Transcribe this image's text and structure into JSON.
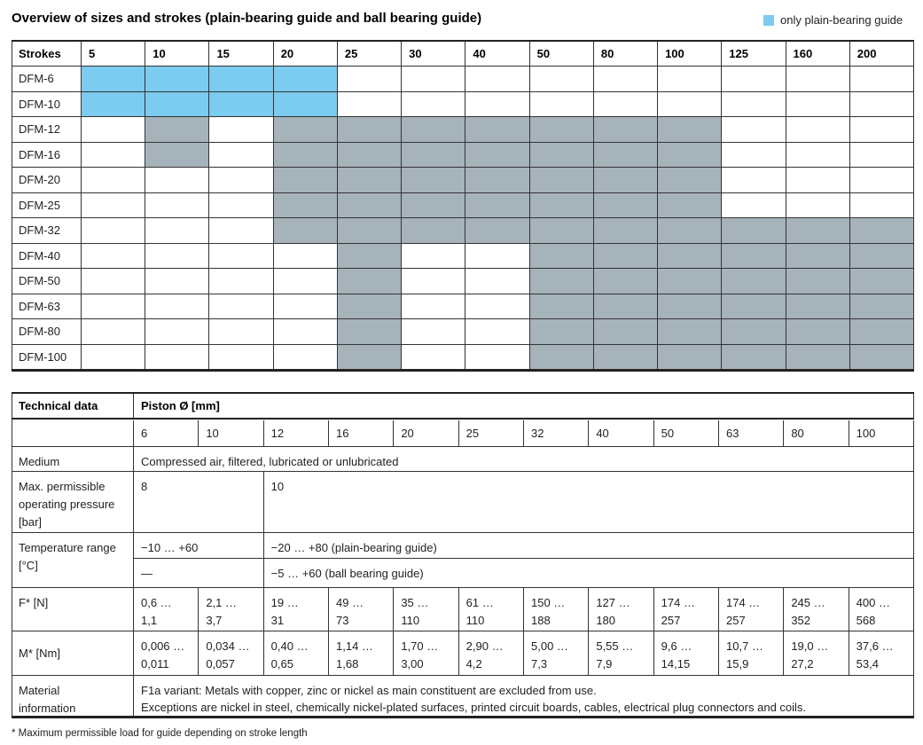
{
  "header": {
    "title": "Overview of sizes and strokes (plain-bearing guide and ball bearing guide)",
    "legend": "only plain-bearing guide"
  },
  "strokes_table": {
    "header_label": "Strokes",
    "strokes": [
      5,
      10,
      15,
      20,
      25,
      30,
      40,
      50,
      80,
      100,
      125,
      160,
      200
    ],
    "rows": [
      "DFM-6",
      "DFM-10",
      "DFM-12",
      "DFM-16",
      "DFM-20",
      "DFM-25",
      "DFM-32",
      "DFM-40",
      "DFM-50",
      "DFM-63",
      "DFM-80",
      "DFM-100"
    ]
  },
  "tech_table": {
    "header_label": "Technical data",
    "piston_label": "Piston Ø [mm]",
    "diameters": [
      6,
      10,
      12,
      16,
      20,
      25,
      32,
      40,
      50,
      63,
      80,
      100
    ],
    "medium": {
      "label": [
        "Medium"
      ],
      "value": "Compressed air, filtered, lubricated or unlubricated"
    },
    "pressure": {
      "label": [
        "Max. permissible",
        "operating pressure",
        "[bar]"
      ],
      "values": [
        "8",
        "10"
      ]
    },
    "temperature": {
      "label": [
        "Temperature range",
        "[°C]"
      ],
      "small": [
        "−10 … +60",
        "—"
      ],
      "large": [
        "−20 … +80 (plain-bearing guide)",
        "−5 … +60 (ball bearing guide)"
      ]
    },
    "force": {
      "label": [
        "F* [N]"
      ],
      "values": [
        [
          "0,6 …",
          "1,1"
        ],
        [
          "2,1 …",
          "3,7"
        ],
        [
          "19 …",
          "31"
        ],
        [
          "49 …",
          "73"
        ],
        [
          "35 …",
          "110"
        ],
        [
          "61 …",
          "110"
        ],
        [
          "150 …",
          "188"
        ],
        [
          "127 …",
          "180"
        ],
        [
          "174 …",
          "257"
        ],
        [
          "174 …",
          "257"
        ],
        [
          "245 …",
          "352"
        ],
        [
          "400 …",
          "568"
        ]
      ]
    },
    "moment": {
      "label": [
        "M* [Nm]"
      ],
      "values": [
        [
          "0,006 …",
          "0,011"
        ],
        [
          "0,034 …",
          "0,057"
        ],
        [
          "0,40 …",
          "0,65"
        ],
        [
          "1,14 …",
          "1,68"
        ],
        [
          "1,70 …",
          "3,00"
        ],
        [
          "2,90 …",
          "4,2"
        ],
        [
          "5,00 …",
          "7,3"
        ],
        [
          "5,55 …",
          "7,9"
        ],
        [
          "9,6 …",
          "14,15"
        ],
        [
          "10,7 …",
          "15,9"
        ],
        [
          "19,0 …",
          "27,2"
        ],
        [
          "37,6 …",
          "53,4"
        ]
      ]
    },
    "material": {
      "label": [
        "Material",
        "information"
      ],
      "lines": [
        "F1a variant: Metals with copper, zinc or nickel as main constituent are excluded from use.",
        "Exceptions are nickel in steel, chemically nickel-plated surfaces, printed circuit boards, cables, electrical plug connectors and coils."
      ]
    }
  },
  "footnote": "* Maximum permissible load for guide depending on stroke length"
}
